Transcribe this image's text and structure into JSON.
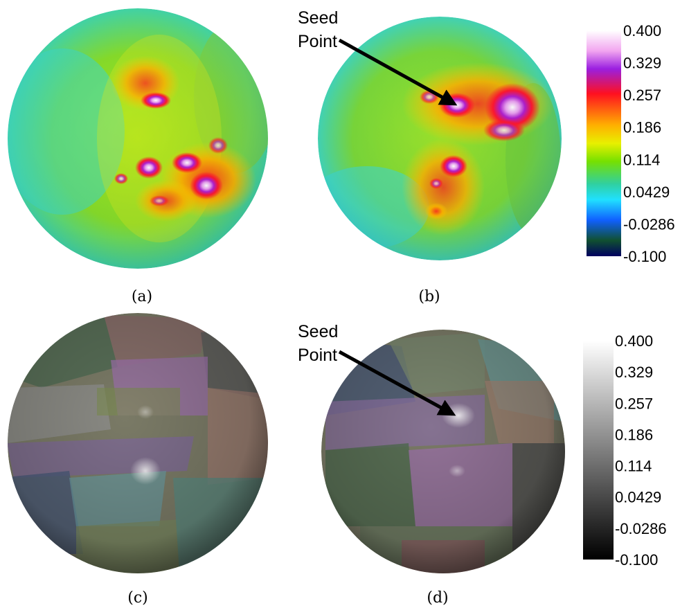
{
  "panels": [
    {
      "caption": "(a)"
    },
    {
      "caption": "(b)",
      "annotation": {
        "line1": "Seed",
        "line2": "Point"
      }
    },
    {
      "caption": "(c)"
    },
    {
      "caption": "(d)",
      "annotation": {
        "line1": "Seed",
        "line2": "Point"
      }
    }
  ],
  "colorbar_color": {
    "ticks": [
      "0.400",
      "0.329",
      "0.257",
      "0.186",
      "0.114",
      "0.0429",
      "-0.0286",
      "-0.100"
    ],
    "stops": [
      "#ffffff",
      "#f2a6f0",
      "#9a1fe0",
      "#ff1020",
      "#ffb000",
      "#e8f000",
      "#76e000",
      "#30d0a0",
      "#20e0ff",
      "#1060ff",
      "#105030",
      "#000060"
    ]
  },
  "colorbar_gray": {
    "ticks": [
      "0.400",
      "0.329",
      "0.257",
      "0.186",
      "0.114",
      "0.0429",
      "-0.0286",
      "-0.100"
    ],
    "stops": [
      "#ffffff",
      "#000000"
    ]
  }
}
